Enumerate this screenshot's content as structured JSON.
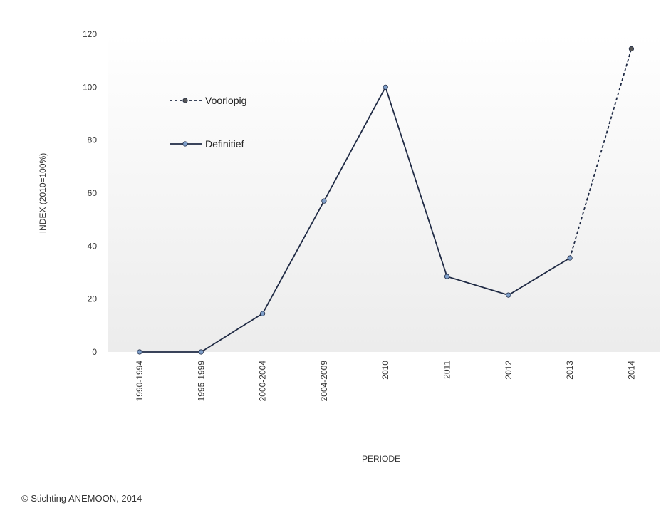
{
  "chart_data": {
    "type": "line",
    "categories": [
      "1990-1994",
      "1995-1999",
      "2000-2004",
      "2004-2009",
      "2010",
      "2011",
      "2012",
      "2013",
      "2014"
    ],
    "series": [
      {
        "name": "Definitief",
        "values": [
          0,
          0,
          14.5,
          57,
          100,
          28.5,
          21.5,
          35.5,
          null
        ],
        "color": "#1f2a44",
        "marker_color": "#7f9fc9",
        "style": "solid"
      },
      {
        "name": "Voorlopig",
        "values": [
          null,
          null,
          null,
          null,
          null,
          null,
          null,
          35.5,
          114.5
        ],
        "color": "#1f2a44",
        "marker_color": "#555555",
        "style": "dashed"
      }
    ],
    "xlabel": "PERIODE",
    "ylabel": "INDEX (2010=100%)",
    "ylim": [
      0,
      120
    ],
    "yticks": [
      0,
      20,
      40,
      60,
      80,
      100,
      120
    ],
    "grid": false,
    "legend_position": "top-left",
    "legend_order": [
      "Voorlopig",
      "Definitief"
    ]
  },
  "footer": {
    "copyright": "© Stichting ANEMOON, 2014"
  }
}
